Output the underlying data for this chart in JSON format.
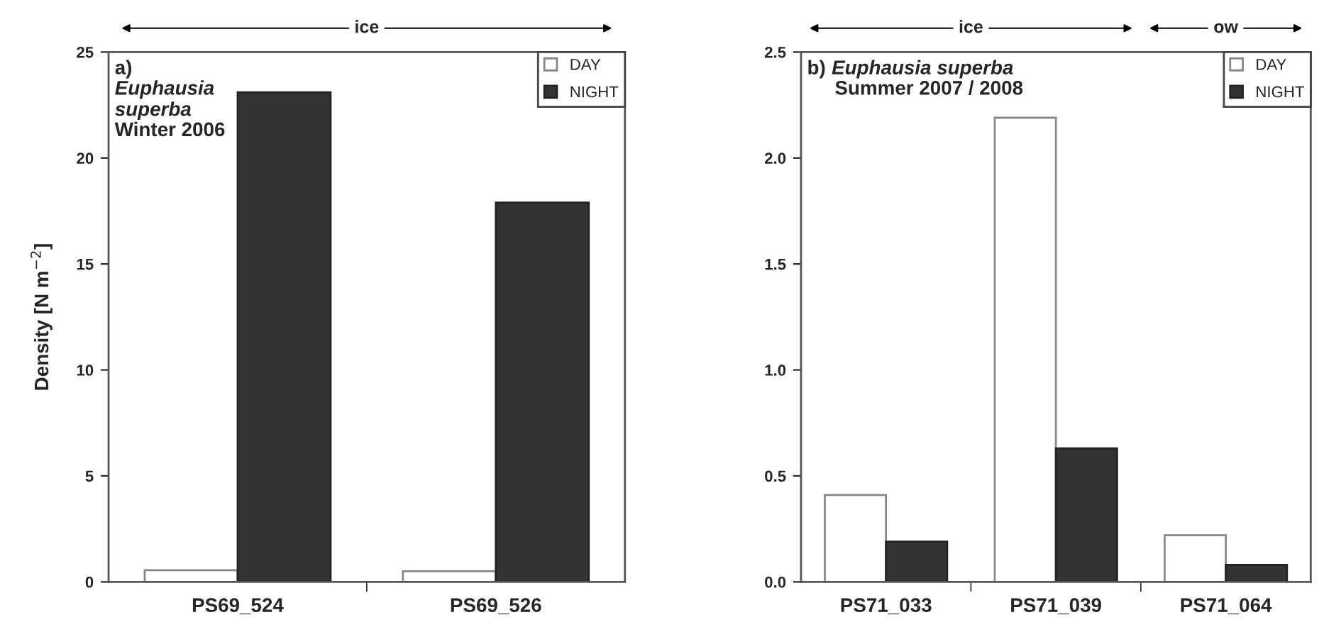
{
  "chart_data": [
    {
      "type": "bar",
      "annotations": [
        "a)",
        "Euphausia superba",
        "Winter 2006",
        "ice"
      ],
      "ylabel": "Density [N m$^{−2}$]",
      "categories": [
        "PS69_524",
        "PS69_526"
      ],
      "series": [
        {
          "name": "DAY",
          "color": "#ffffff",
          "values": [
            0.55,
            0.5
          ]
        },
        {
          "name": "NIGHT",
          "color": "#333333",
          "values": [
            23.1,
            17.9
          ]
        }
      ],
      "ylim": [
        0,
        25
      ],
      "yticks": [
        0,
        5,
        10,
        15,
        20,
        25
      ],
      "legend": "top right",
      "grid": false
    },
    {
      "type": "bar",
      "annotations": [
        "b)",
        "Euphausia superba",
        "Summer 2007 / 2008",
        "ice",
        "ow"
      ],
      "categories": [
        "PS71_033",
        "PS71_039",
        "PS71_064"
      ],
      "series": [
        {
          "name": "DAY",
          "color": "#ffffff",
          "values": [
            0.41,
            2.19,
            0.22
          ]
        },
        {
          "name": "NIGHT",
          "color": "#333333",
          "values": [
            0.19,
            0.63,
            0.08
          ]
        }
      ],
      "ylim": [
        0,
        2.5
      ],
      "yticks": [
        {
          "value": 0,
          "label": "0.0"
        },
        {
          "value": 0.5,
          "label": "0.5"
        },
        {
          "value": 1,
          "label": "1.0"
        },
        {
          "value": 1.5,
          "label": "1.5"
        },
        {
          "value": 2,
          "label": "2.0"
        },
        {
          "value": 2.5,
          "label": "2.5"
        }
      ],
      "legend": "top right",
      "grid": false
    }
  ]
}
